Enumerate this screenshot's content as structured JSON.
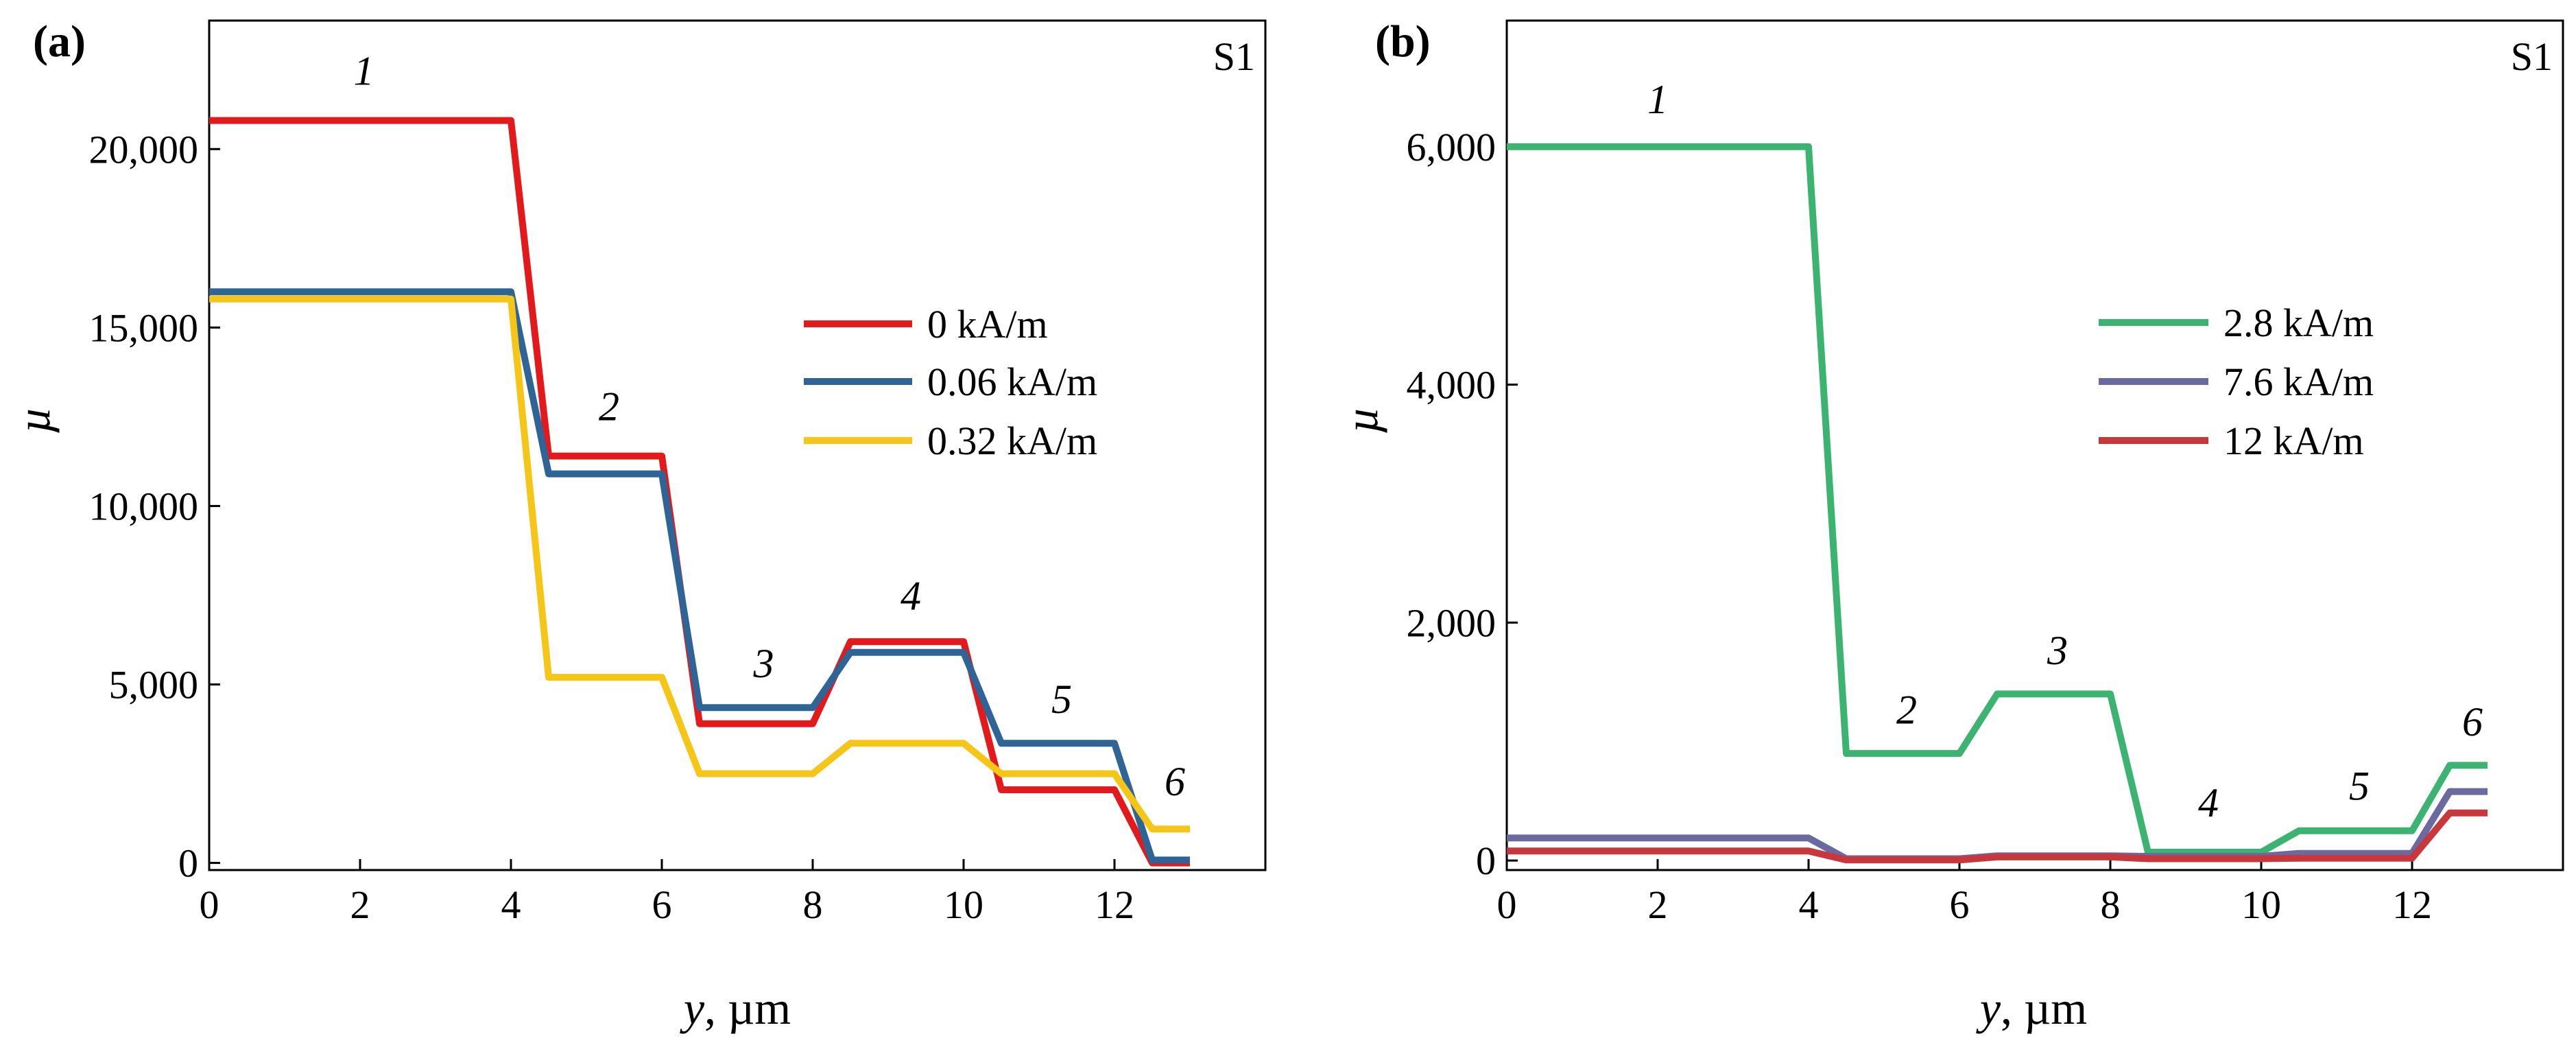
{
  "chart_data": [
    {
      "type": "line",
      "panel": "(a)",
      "sample": "S1",
      "xlabel": {
        "var": "y",
        "rest": ", µm"
      },
      "ylabel": "µ",
      "xlim": [
        0,
        14
      ],
      "ylim": [
        -200,
        23600
      ],
      "xticks": [
        0,
        2,
        4,
        6,
        8,
        10,
        12
      ],
      "xtick_labels": [
        "0",
        "2",
        "4",
        "6",
        "8",
        "10",
        "12"
      ],
      "yticks": [
        0,
        5000,
        10000,
        15000,
        20000
      ],
      "ytick_labels": [
        "0",
        "5,000",
        "10,000",
        "15,000",
        "20,000"
      ],
      "series": [
        {
          "name": "0 kA/m",
          "color": "#e31a1c",
          "x": [
            0,
            4,
            4.5,
            6,
            6.5,
            8,
            8.5,
            10,
            10.5,
            12,
            12.5,
            13
          ],
          "y": [
            20800,
            20800,
            11400,
            11400,
            3900,
            3900,
            6200,
            6200,
            2050,
            2050,
            0,
            0
          ]
        },
        {
          "name": "0.06 kA/m",
          "color": "#2f6496",
          "x": [
            0,
            4,
            4.5,
            6,
            6.5,
            8,
            8.5,
            10,
            10.5,
            12,
            12.5,
            13
          ],
          "y": [
            16000,
            16000,
            10900,
            10900,
            4350,
            4350,
            5900,
            5900,
            3350,
            3350,
            80,
            80
          ]
        },
        {
          "name": "0.32 kA/m",
          "color": "#f5c518",
          "x": [
            0,
            4,
            4.5,
            6,
            6.5,
            8,
            8.5,
            10,
            10.5,
            12,
            12.5,
            13
          ],
          "y": [
            15800,
            15800,
            5200,
            5200,
            2500,
            2500,
            3350,
            3350,
            2500,
            2500,
            950,
            950
          ]
        }
      ],
      "segment_labels": [
        {
          "text": "1",
          "x": 2.05,
          "y": 21800
        },
        {
          "text": "2",
          "x": 5.3,
          "y": 12400
        },
        {
          "text": "3",
          "x": 7.35,
          "y": 5200
        },
        {
          "text": "4",
          "x": 9.3,
          "y": 7100
        },
        {
          "text": "5",
          "x": 11.3,
          "y": 4200
        },
        {
          "text": "6",
          "x": 12.8,
          "y": 1900
        }
      ],
      "legend": {
        "position": "center-right"
      }
    },
    {
      "type": "line",
      "panel": "(b)",
      "sample": "S1",
      "xlabel": {
        "var": "y",
        "rest": ", µm"
      },
      "ylabel": "µ",
      "xlim": [
        0,
        14
      ],
      "ylim": [
        -80,
        7060
      ],
      "xticks": [
        0,
        2,
        4,
        6,
        8,
        10,
        12
      ],
      "xtick_labels": [
        "0",
        "2",
        "4",
        "6",
        "8",
        "10",
        "12"
      ],
      "yticks": [
        0,
        2000,
        4000,
        6000
      ],
      "ytick_labels": [
        "0",
        "2,000",
        "4,000",
        "6,000"
      ],
      "series": [
        {
          "name": "2.8 kA/m",
          "color": "#3cb371",
          "x": [
            0,
            4,
            4.5,
            6,
            6.5,
            8,
            8.5,
            10,
            10.5,
            12,
            12.5,
            13
          ],
          "y": [
            6000,
            6000,
            900,
            900,
            1400,
            1400,
            70,
            70,
            250,
            250,
            800,
            800
          ]
        },
        {
          "name": "7.6 kA/m",
          "color": "#6a6aa0",
          "x": [
            0,
            4,
            4.5,
            6,
            6.5,
            8,
            8.5,
            10,
            10.5,
            12,
            12.5,
            13
          ],
          "y": [
            190,
            190,
            15,
            15,
            40,
            40,
            35,
            35,
            60,
            60,
            580,
            580
          ]
        },
        {
          "name": "12 kA/m",
          "color": "#c8373b",
          "x": [
            0,
            4,
            4.5,
            6,
            6.5,
            8,
            8.5,
            10,
            10.5,
            12,
            12.5,
            13
          ],
          "y": [
            80,
            80,
            5,
            5,
            30,
            30,
            15,
            15,
            20,
            20,
            400,
            400
          ]
        }
      ],
      "segment_labels": [
        {
          "text": "1",
          "x": 2.0,
          "y": 6280
        },
        {
          "text": "2",
          "x": 5.3,
          "y": 1150
        },
        {
          "text": "3",
          "x": 7.3,
          "y": 1650
        },
        {
          "text": "4",
          "x": 9.3,
          "y": 370
        },
        {
          "text": "5",
          "x": 11.3,
          "y": 510
        },
        {
          "text": "6",
          "x": 12.8,
          "y": 1050
        }
      ],
      "legend": {
        "position": "center-right"
      }
    }
  ]
}
